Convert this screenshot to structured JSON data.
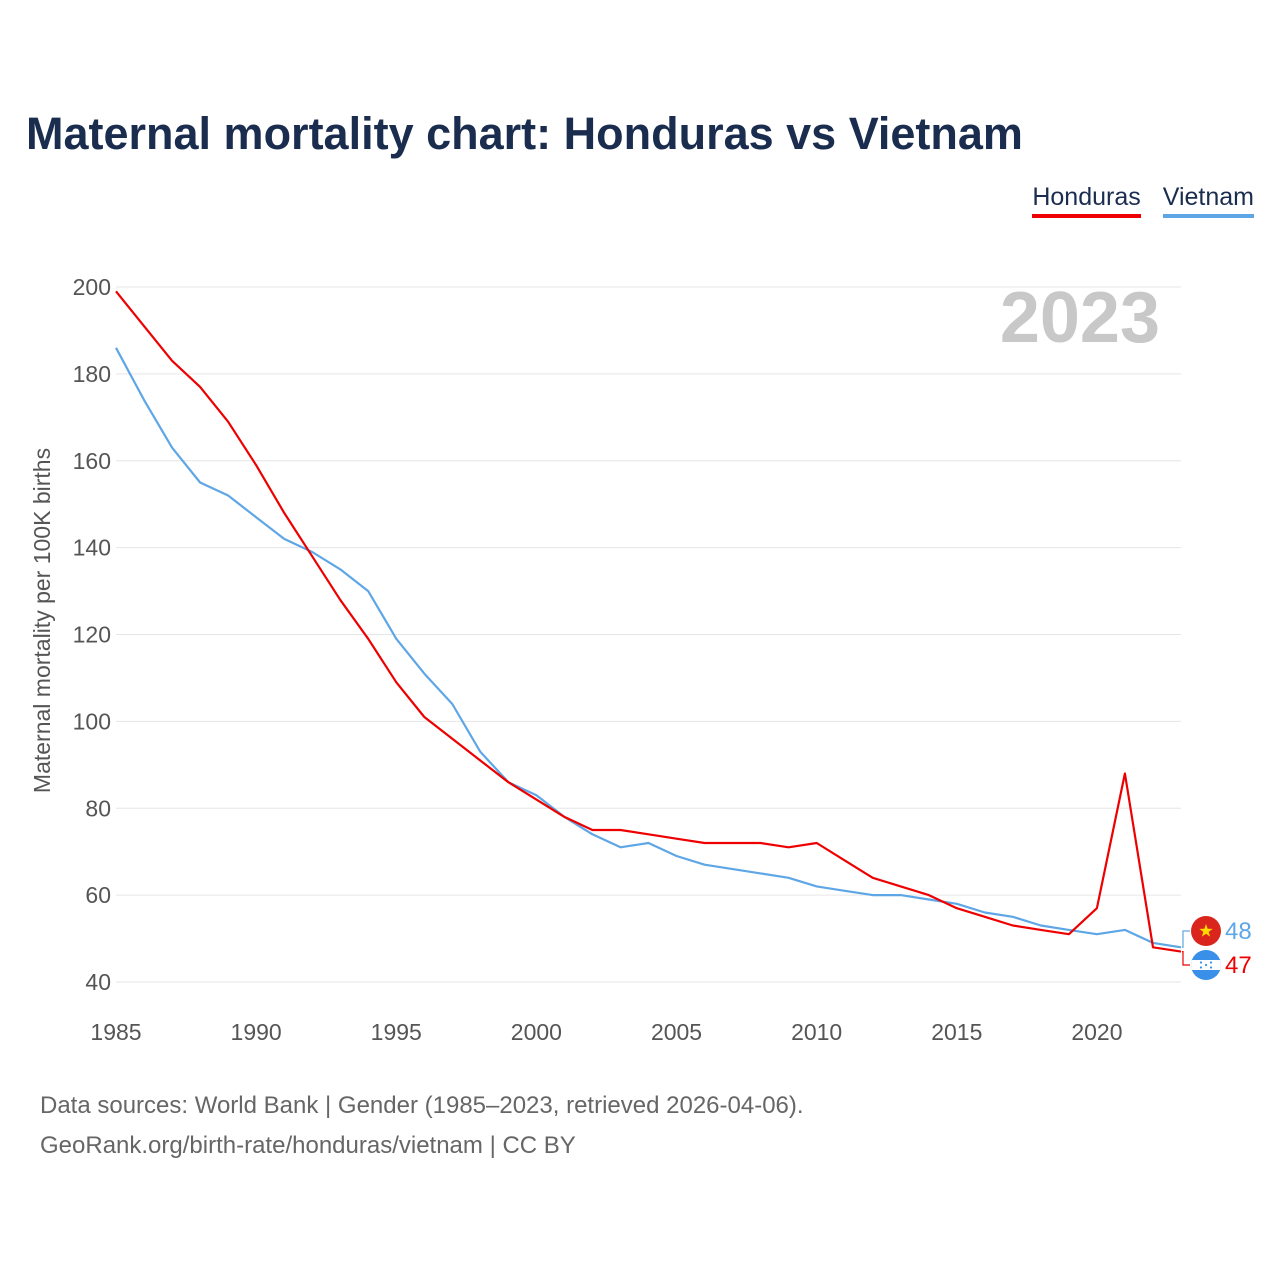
{
  "title": "Maternal mortality chart: Honduras vs Vietnam",
  "legend": [
    {
      "name": "Honduras",
      "color": "#ee0000"
    },
    {
      "name": "Vietnam",
      "color": "#5ea6e6"
    }
  ],
  "year_watermark": "2023",
  "footer": {
    "line1": "Data sources: World Bank | Gender (1985–2023, retrieved 2026-04-06).",
    "line2": "GeoRank.org/birth-rate/honduras/vietnam | CC BY"
  },
  "chart_data": {
    "type": "line",
    "title": "Maternal mortality chart: Honduras vs Vietnam",
    "xlabel": "",
    "ylabel": "Maternal mortality per 100K births",
    "xlim": [
      1985,
      2023
    ],
    "ylim": [
      40,
      200
    ],
    "x_ticks": [
      1985,
      1990,
      1995,
      2000,
      2005,
      2010,
      2015,
      2020
    ],
    "y_ticks": [
      40,
      60,
      80,
      100,
      120,
      140,
      160,
      180,
      200
    ],
    "grid": true,
    "x": [
      1985,
      1986,
      1987,
      1988,
      1989,
      1990,
      1991,
      1992,
      1993,
      1994,
      1995,
      1996,
      1997,
      1998,
      1999,
      2000,
      2001,
      2002,
      2003,
      2004,
      2005,
      2006,
      2007,
      2008,
      2009,
      2010,
      2011,
      2012,
      2013,
      2014,
      2015,
      2016,
      2017,
      2018,
      2019,
      2020,
      2021,
      2022,
      2023
    ],
    "series": [
      {
        "name": "Honduras",
        "color": "#ee0000",
        "values": [
          199,
          191,
          183,
          177,
          169,
          159,
          148,
          138,
          128,
          119,
          109,
          101,
          96,
          91,
          86,
          82,
          78,
          75,
          75,
          74,
          73,
          72,
          72,
          72,
          71,
          72,
          68,
          64,
          62,
          60,
          57,
          55,
          53,
          52,
          51,
          57,
          88,
          48,
          47
        ],
        "end_label": "47",
        "flag": "honduras-flag-icon"
      },
      {
        "name": "Vietnam",
        "color": "#5ea6e6",
        "values": [
          186,
          174,
          163,
          155,
          152,
          147,
          142,
          139,
          135,
          130,
          119,
          111,
          104,
          93,
          86,
          83,
          78,
          74,
          71,
          72,
          69,
          67,
          66,
          65,
          64,
          62,
          61,
          60,
          60,
          59,
          58,
          56,
          55,
          53,
          52,
          51,
          52,
          49,
          48
        ],
        "end_label": "48",
        "flag": "vietnam-flag-icon"
      }
    ]
  }
}
